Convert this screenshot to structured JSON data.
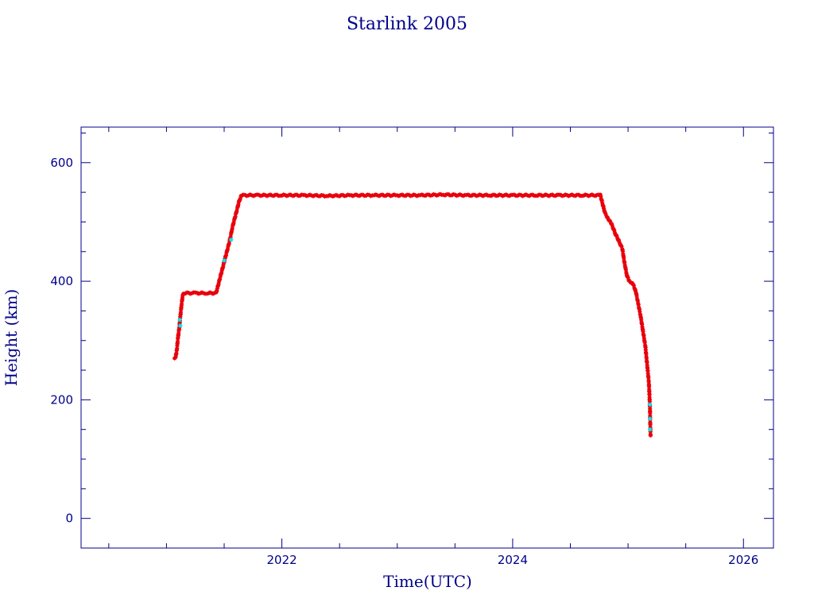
{
  "chart_data": {
    "type": "scatter",
    "title": "Starlink 2005",
    "xlabel": "Time(UTC)",
    "ylabel": "Height (km)",
    "x_range": [
      2020.26,
      2026.26
    ],
    "ylim": [
      -50,
      660
    ],
    "x_ticks": [
      2022,
      2024,
      2026
    ],
    "x_minor_ticks": [
      2020.5,
      2021,
      2021.5,
      2022.5,
      2023,
      2023.5,
      2024.5,
      2025,
      2025.5
    ],
    "y_ticks": [
      0,
      200,
      400,
      600
    ],
    "y_minor_ticks": [
      50,
      100,
      150,
      250,
      300,
      350,
      450,
      500,
      550,
      650
    ],
    "grid": false,
    "colors": {
      "axis": "#00008b",
      "primary": "#e8000b",
      "secondary": "#00e5ee"
    },
    "series": [
      {
        "color": "#e8000b",
        "marker": "star",
        "points": [
          [
            2021.07,
            270
          ],
          [
            2021.08,
            272
          ],
          [
            2021.09,
            285
          ],
          [
            2021.1,
            305
          ],
          [
            2021.11,
            320
          ],
          [
            2021.12,
            340
          ],
          [
            2021.13,
            360
          ],
          [
            2021.14,
            375
          ],
          [
            2021.15,
            380
          ],
          [
            2021.25,
            380
          ],
          [
            2021.35,
            380
          ],
          [
            2021.43,
            380
          ],
          [
            2021.45,
            395
          ],
          [
            2021.47,
            410
          ],
          [
            2021.49,
            425
          ],
          [
            2021.51,
            440
          ],
          [
            2021.53,
            455
          ],
          [
            2021.55,
            470
          ],
          [
            2021.57,
            490
          ],
          [
            2021.59,
            505
          ],
          [
            2021.61,
            520
          ],
          [
            2021.63,
            535
          ],
          [
            2021.65,
            545
          ],
          [
            2021.8,
            545
          ],
          [
            2022.0,
            545
          ],
          [
            2022.2,
            545
          ],
          [
            2022.4,
            544
          ],
          [
            2022.6,
            545
          ],
          [
            2022.8,
            545
          ],
          [
            2023.0,
            545
          ],
          [
            2023.2,
            545
          ],
          [
            2023.4,
            546
          ],
          [
            2023.6,
            545
          ],
          [
            2023.8,
            545
          ],
          [
            2024.0,
            545
          ],
          [
            2024.2,
            545
          ],
          [
            2024.4,
            545
          ],
          [
            2024.6,
            545
          ],
          [
            2024.76,
            545
          ],
          [
            2024.78,
            530
          ],
          [
            2024.8,
            515
          ],
          [
            2024.83,
            505
          ],
          [
            2024.86,
            495
          ],
          [
            2024.89,
            480
          ],
          [
            2024.92,
            468
          ],
          [
            2024.95,
            455
          ],
          [
            2024.97,
            430
          ],
          [
            2024.99,
            410
          ],
          [
            2025.01,
            400
          ],
          [
            2025.03,
            398
          ],
          [
            2025.05,
            392
          ],
          [
            2025.07,
            380
          ],
          [
            2025.09,
            360
          ],
          [
            2025.11,
            340
          ],
          [
            2025.13,
            315
          ],
          [
            2025.15,
            290
          ],
          [
            2025.16,
            270
          ],
          [
            2025.17,
            250
          ],
          [
            2025.18,
            230
          ],
          [
            2025.185,
            210
          ],
          [
            2025.19,
            185
          ],
          [
            2025.192,
            160
          ],
          [
            2025.195,
            140
          ]
        ]
      },
      {
        "color": "#00e5ee",
        "marker": "star",
        "points": [
          [
            2021.115,
            335
          ],
          [
            2021.12,
            325
          ],
          [
            2021.56,
            470
          ],
          [
            2021.5,
            435
          ],
          [
            2025.19,
            192
          ],
          [
            2025.19,
            168
          ],
          [
            2025.19,
            150
          ]
        ]
      }
    ]
  }
}
